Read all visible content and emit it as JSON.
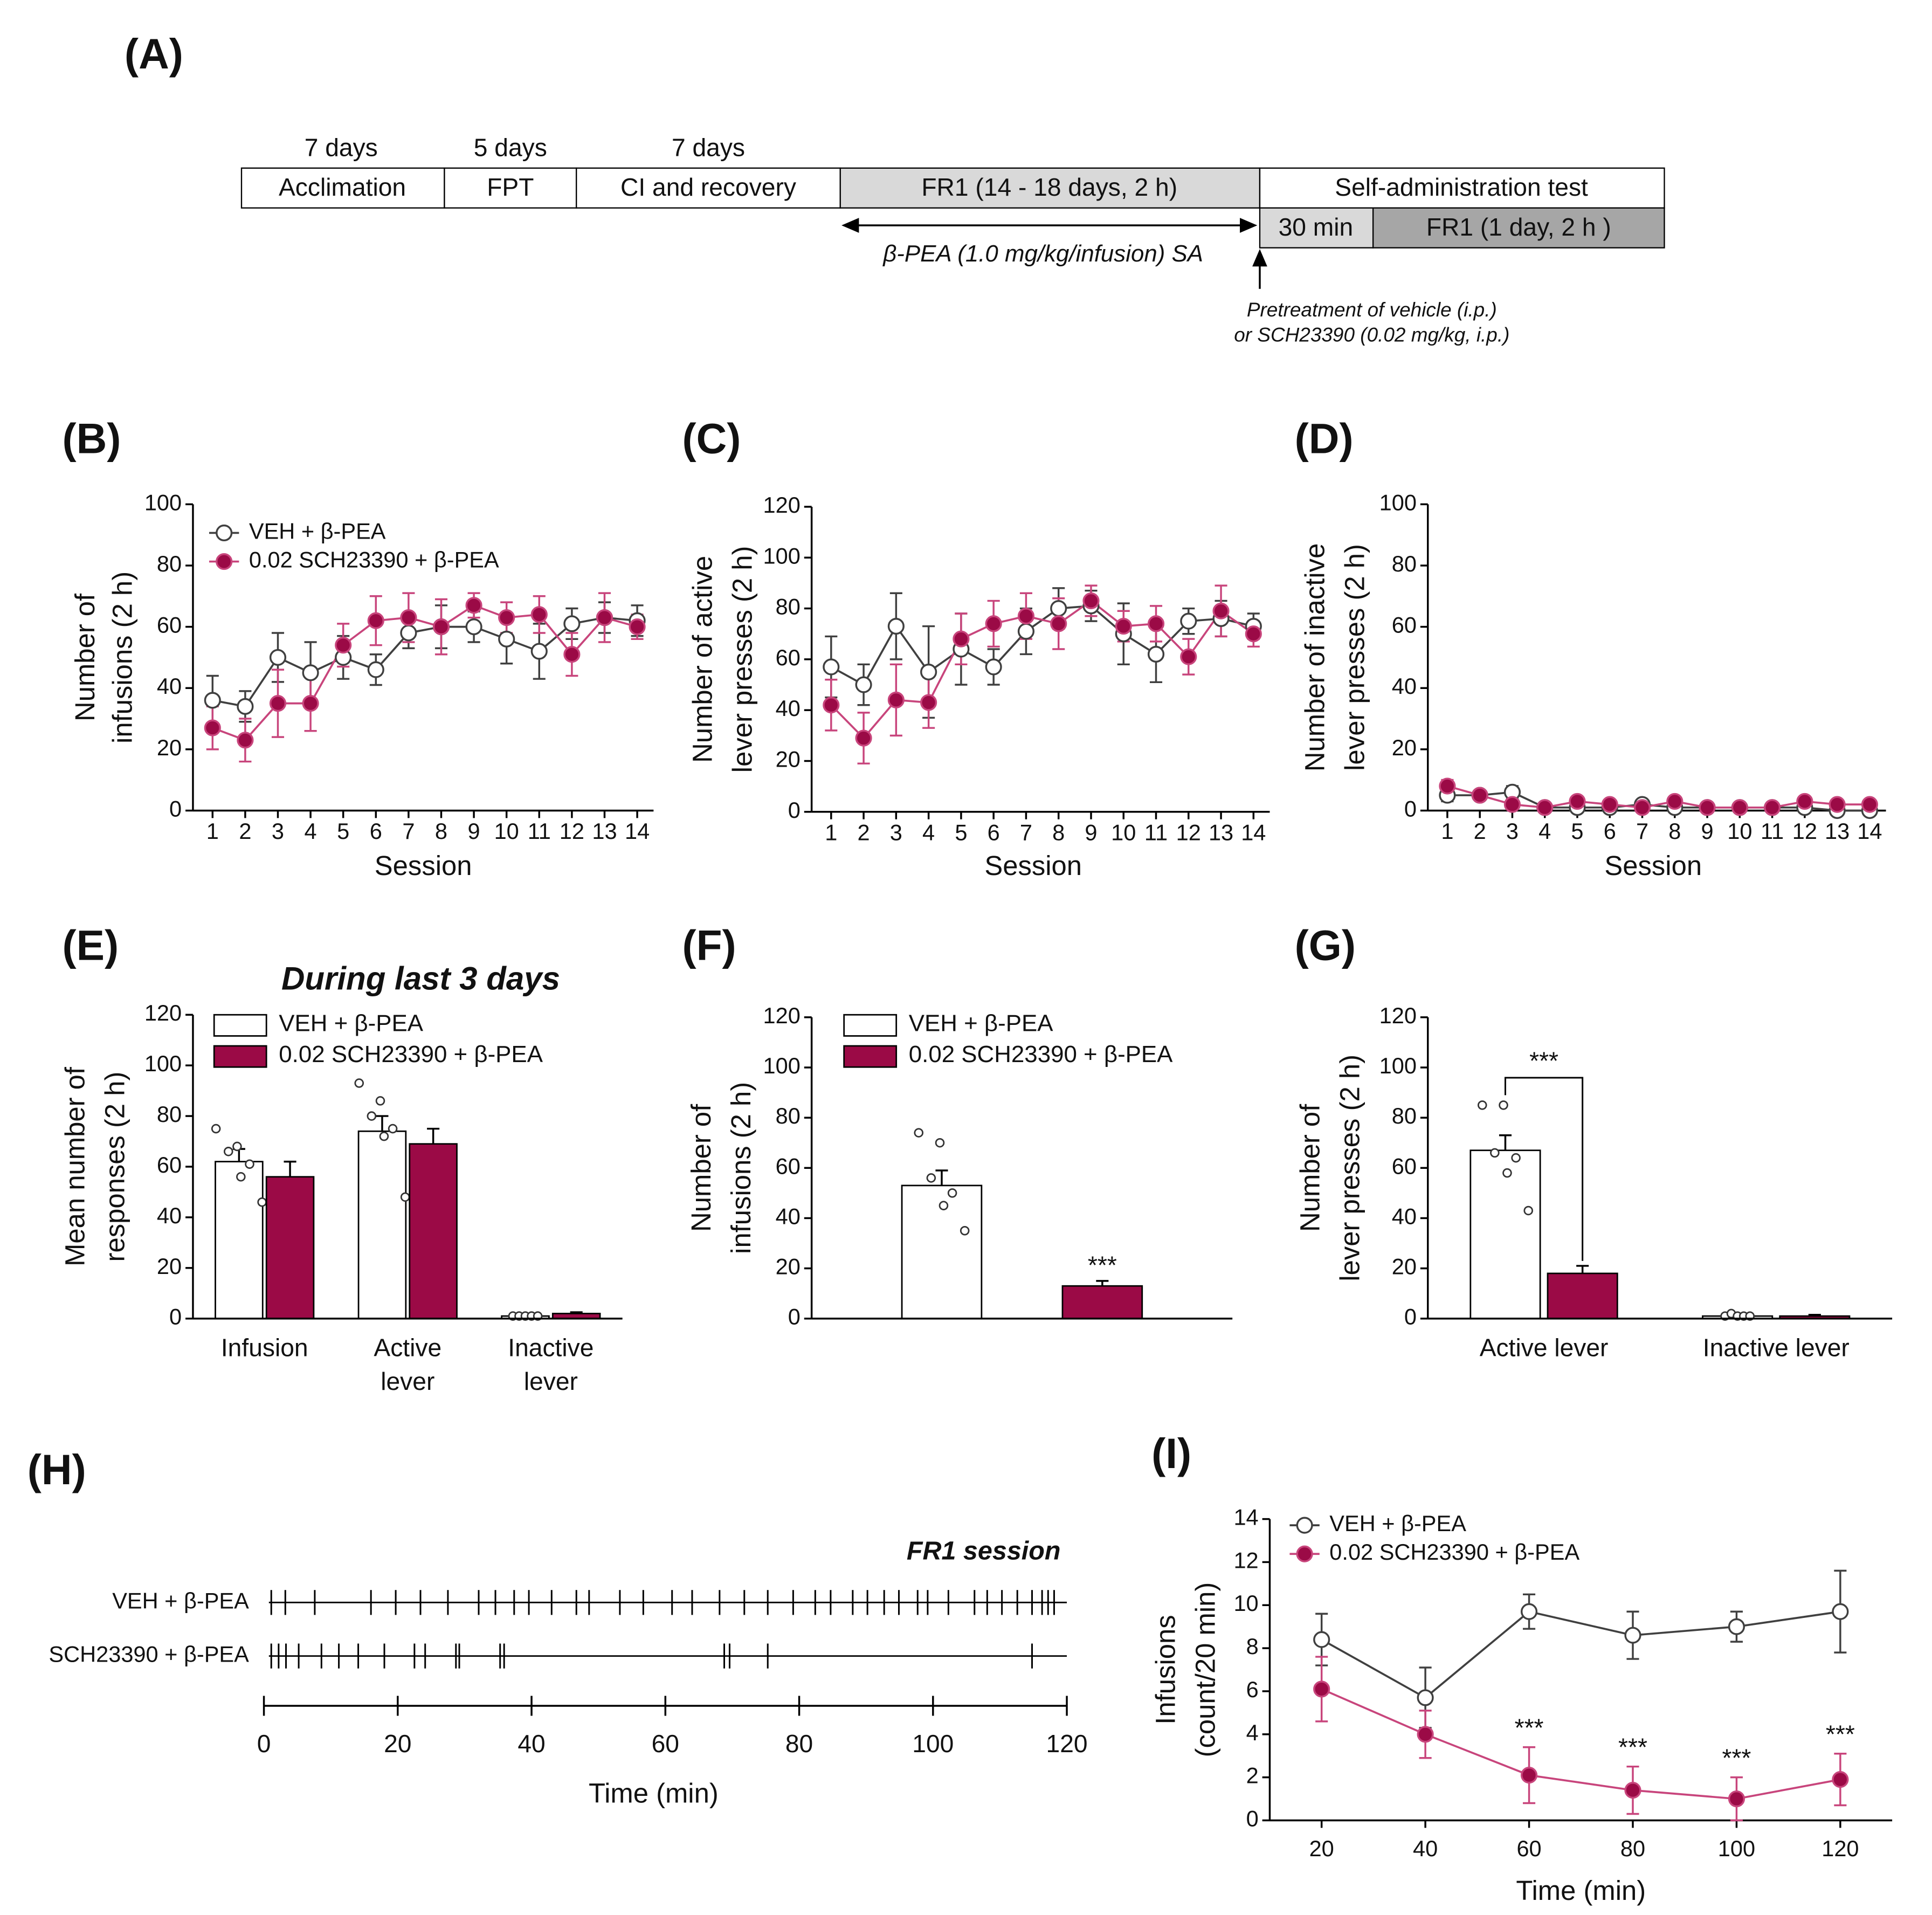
{
  "timeline": {
    "panel": "(A)",
    "phases": [
      {
        "label": "Acclimation",
        "duration": "7 days"
      },
      {
        "label": "FPT",
        "duration": "5 days"
      },
      {
        "label": "CI and recovery",
        "duration": "7 days"
      },
      {
        "label": "FR1 (14 - 18 days, 2 h)"
      },
      {
        "label": "Self-administration  test"
      }
    ],
    "subphases": [
      "30 min",
      "FR1 (1 day, 2 h )"
    ],
    "arrow_label": "β-PEA (1.0 mg/kg/infusion) SA",
    "pretreatment": [
      "Pretreatment of vehicle (i.p.)",
      "or SCH23390 (0.02 mg/kg, i.p.)"
    ]
  },
  "chart_data": [
    {
      "type": "line",
      "panel": "(B)",
      "xlabel": "Session",
      "ylabel": [
        "Number of",
        "infusions (2 h)"
      ],
      "x": [
        1,
        2,
        3,
        4,
        5,
        6,
        7,
        8,
        9,
        10,
        11,
        12,
        13,
        14
      ],
      "xlim": [
        0.4,
        14.5
      ],
      "xticks": [
        1,
        2,
        3,
        4,
        5,
        6,
        7,
        8,
        9,
        10,
        11,
        12,
        13,
        14
      ],
      "ylim": [
        0,
        100
      ],
      "yticks": [
        0,
        20,
        40,
        60,
        80,
        100
      ],
      "legend": "upper left",
      "series": [
        {
          "name": "VEH + β-PEA",
          "color": "#404040",
          "marker_color": "#ffffff",
          "values": [
            36,
            34,
            50,
            45,
            50,
            46,
            58,
            60,
            60,
            56,
            52,
            61,
            63,
            62
          ],
          "errors": [
            8,
            5,
            8,
            10,
            7,
            5,
            5,
            7,
            5,
            8,
            9,
            5,
            5,
            5
          ]
        },
        {
          "name": "0.02 SCH23390 + β-PEA",
          "color": "#c8457c",
          "marker_color": "#9b0a46",
          "values": [
            27,
            23,
            35,
            35,
            54,
            62,
            63,
            60,
            67,
            63,
            64,
            51,
            63,
            60
          ],
          "errors": [
            7,
            7,
            11,
            9,
            7,
            8,
            8,
            9,
            4,
            5,
            6,
            7,
            8,
            4
          ]
        }
      ]
    },
    {
      "type": "line",
      "panel": "(C)",
      "xlabel": "Session",
      "ylabel": [
        "Number of active",
        "lever presses (2 h)"
      ],
      "x": [
        1,
        2,
        3,
        4,
        5,
        6,
        7,
        8,
        9,
        10,
        11,
        12,
        13,
        14
      ],
      "xlim": [
        0.4,
        14.5
      ],
      "xticks": [
        1,
        2,
        3,
        4,
        5,
        6,
        7,
        8,
        9,
        10,
        11,
        12,
        13,
        14
      ],
      "ylim": [
        0,
        120
      ],
      "yticks": [
        0,
        20,
        40,
        60,
        80,
        100,
        120
      ],
      "series": [
        {
          "color": "#404040",
          "marker_color": "#ffffff",
          "values": [
            57,
            50,
            73,
            55,
            64,
            57,
            71,
            80,
            81,
            70,
            62,
            75,
            76,
            73
          ],
          "errors": [
            12,
            8,
            13,
            18,
            14,
            7,
            9,
            8,
            6,
            12,
            11,
            5,
            7,
            5
          ]
        },
        {
          "color": "#c8457c",
          "marker_color": "#9b0a46",
          "values": [
            42,
            29,
            44,
            43,
            68,
            74,
            77,
            74,
            83,
            73,
            74,
            61,
            79,
            70
          ],
          "errors": [
            10,
            10,
            14,
            10,
            10,
            9,
            9,
            10,
            6,
            6,
            7,
            7,
            10,
            5
          ]
        }
      ]
    },
    {
      "type": "line",
      "panel": "(D)",
      "xlabel": "Session",
      "ylabel": [
        "Number of inactive",
        "lever presses (2 h)"
      ],
      "x": [
        1,
        2,
        3,
        4,
        5,
        6,
        7,
        8,
        9,
        10,
        11,
        12,
        13,
        14
      ],
      "xlim": [
        0.4,
        14.5
      ],
      "xticks": [
        1,
        2,
        3,
        4,
        5,
        6,
        7,
        8,
        9,
        10,
        11,
        12,
        13,
        14
      ],
      "ylim": [
        0,
        100
      ],
      "yticks": [
        0,
        20,
        40,
        60,
        80,
        100
      ],
      "series": [
        {
          "color": "#404040",
          "marker_color": "#ffffff",
          "values": [
            5,
            5,
            6,
            1,
            1,
            1,
            2,
            1,
            1,
            1,
            1,
            1,
            0,
            0
          ],
          "errors": [
            2,
            1,
            2,
            1,
            1,
            1,
            1,
            1,
            1,
            1,
            1,
            1,
            1,
            1
          ]
        },
        {
          "color": "#c8457c",
          "marker_color": "#9b0a46",
          "values": [
            8,
            5,
            2,
            1,
            3,
            2,
            1,
            3,
            1,
            1,
            1,
            3,
            2,
            2
          ],
          "errors": [
            2,
            1,
            1,
            1,
            1,
            1,
            1,
            1,
            1,
            1,
            1,
            1,
            1,
            1
          ]
        }
      ]
    },
    {
      "type": "bar",
      "panel": "(E)",
      "title": "During last 3 days",
      "ylabel": [
        "Mean number of",
        "responses (2 h)"
      ],
      "categories": [
        [
          "Infusion"
        ],
        [
          "Active",
          "lever"
        ],
        [
          "Inactive",
          "lever"
        ]
      ],
      "ylim": [
        0,
        120
      ],
      "yticks": [
        0,
        20,
        40,
        60,
        80,
        100,
        120
      ],
      "legend": "upper left",
      "series": [
        {
          "name": "VEH + β-PEA",
          "color": "#ffffff",
          "values": [
            62,
            74,
            1
          ],
          "errors": [
            5,
            6,
            0.5
          ],
          "points": [
            [
              75,
              68,
              66,
              61,
              56,
              46
            ],
            [
              93,
              86,
              80,
              75,
              72,
              48
            ],
            [
              1,
              1,
              1,
              1,
              1
            ]
          ]
        },
        {
          "name": "0.02 SCH23390 + β-PEA",
          "color": "#9b0a46",
          "values": [
            56,
            69,
            2
          ],
          "errors": [
            6,
            6,
            0.5
          ]
        }
      ]
    },
    {
      "type": "bar",
      "panel": "(F)",
      "ylabel": [
        "Number of",
        "infusions (2 h)"
      ],
      "categories": [
        null
      ],
      "ylim": [
        0,
        120
      ],
      "yticks": [
        0,
        20,
        40,
        60,
        80,
        100,
        120
      ],
      "legend": "upper left",
      "series": [
        {
          "name": "VEH + β-PEA",
          "color": "#ffffff",
          "values": [
            53
          ],
          "errors": [
            6
          ],
          "points": [
            [
              74,
              70,
              56,
              50,
              45,
              35
            ]
          ]
        },
        {
          "name": "0.02 SCH23390 + β-PEA",
          "color": "#9b0a46",
          "values": [
            13
          ],
          "errors": [
            2
          ]
        }
      ],
      "annotations": [
        {
          "text": "***",
          "series": 1,
          "category": 0
        }
      ]
    },
    {
      "type": "bar",
      "panel": "(G)",
      "ylabel": [
        "Number of",
        "lever presses (2 h)"
      ],
      "categories": [
        [
          "Active lever"
        ],
        [
          "Inactive lever"
        ]
      ],
      "ylim": [
        0,
        120
      ],
      "yticks": [
        0,
        20,
        40,
        60,
        80,
        100,
        120
      ],
      "series": [
        {
          "color": "#ffffff",
          "values": [
            67,
            1
          ],
          "errors": [
            6,
            0.5
          ],
          "points": [
            [
              85,
              85,
              66,
              64,
              58,
              43
            ],
            [
              1,
              2,
              1,
              1,
              1
            ]
          ]
        },
        {
          "color": "#9b0a46",
          "values": [
            18,
            1
          ],
          "errors": [
            3,
            0.5
          ]
        }
      ],
      "annotations": [
        {
          "text": "***",
          "category": 0,
          "bracket": true
        }
      ]
    },
    {
      "type": "raster",
      "panel": "(H)",
      "title": "FR1 session",
      "xlabel": "Time (min)",
      "xlim": [
        0,
        120
      ],
      "xticks": [
        0,
        20,
        40,
        60,
        80,
        100,
        120
      ],
      "series": [
        {
          "name": "VEH + β-PEA",
          "color": "#000000",
          "values": [
            1.1,
            3.2,
            7.6,
            16,
            19.7,
            23.4,
            27.5,
            32.1,
            34.6,
            37.4,
            39.6,
            43,
            46.7,
            48.6,
            53.2,
            56.7,
            61,
            64,
            68.1,
            71.8,
            75.3,
            79.1,
            82.4,
            84.7,
            88,
            90.2,
            92.7,
            94.9,
            97.7,
            99.2,
            102.3,
            106.2,
            108.1,
            110.3,
            112.6,
            114.8,
            116.3,
            117.2,
            118.1
          ]
        },
        {
          "name": "SCH23390 + β-PEA",
          "color": "#000000",
          "values": [
            1.1,
            2.2,
            3.3,
            5.2,
            8.6,
            11.2,
            14.1,
            18,
            22.5,
            24.1,
            28.7,
            29.2,
            35.3,
            35.9,
            68.8,
            69.6,
            75.3,
            114.8
          ]
        }
      ]
    },
    {
      "type": "line",
      "panel": "(I)",
      "xlabel": "Time (min)",
      "ylabel": [
        "Infusions",
        "(count/20 min)"
      ],
      "x": [
        20,
        40,
        60,
        80,
        100,
        120
      ],
      "xlim": [
        10,
        130
      ],
      "xticks": [
        20,
        40,
        60,
        80,
        100,
        120
      ],
      "ylim": [
        0,
        14
      ],
      "yticks": [
        0,
        2,
        4,
        6,
        8,
        10,
        12,
        14
      ],
      "legend": "upper left",
      "series": [
        {
          "name": "VEH + β-PEA",
          "color": "#404040",
          "marker_color": "#ffffff",
          "values": [
            8.4,
            5.7,
            9.7,
            8.6,
            9.0,
            9.7
          ],
          "errors": [
            1.2,
            1.4,
            0.8,
            1.1,
            0.7,
            1.9
          ]
        },
        {
          "name": "0.02 SCH23390 + β-PEA",
          "color": "#c8457c",
          "marker_color": "#9b0a46",
          "values": [
            6.1,
            4.0,
            2.1,
            1.4,
            1.0,
            1.9
          ],
          "errors": [
            1.5,
            1.1,
            1.3,
            1.1,
            1.0,
            1.2
          ]
        }
      ],
      "annotations": [
        {
          "x": 60,
          "text": "***"
        },
        {
          "x": 80,
          "text": "***"
        },
        {
          "x": 100,
          "text": "***"
        },
        {
          "x": 120,
          "text": "***"
        }
      ]
    }
  ]
}
